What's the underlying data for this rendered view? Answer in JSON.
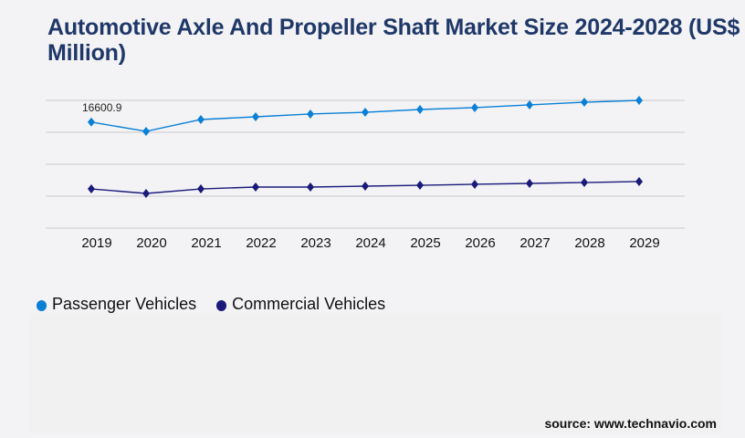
{
  "chart_data": {
    "type": "line",
    "title": "Automotive Axle And Propeller Shaft Market Size 2024-2028 (US$ Million)",
    "xlabel": "",
    "ylabel": "",
    "categories": [
      "2019",
      "2020",
      "2021",
      "2022",
      "2023",
      "2024",
      "2025",
      "2026",
      "2027",
      "2028",
      "2029"
    ],
    "ylim": [
      0,
      20000
    ],
    "grid": true,
    "legend_position": "bottom-left",
    "series": [
      {
        "name": "Passenger Vehicles",
        "color": "#0a7fd6",
        "values": [
          16600.9,
          15150,
          17000,
          17430,
          17860,
          18140,
          18570,
          18860,
          19290,
          19710,
          20000
        ]
      },
      {
        "name": "Commercial Vehicles",
        "color": "#1a1a7a",
        "values": [
          6140,
          5430,
          6140,
          6430,
          6430,
          6570,
          6710,
          6860,
          7000,
          7140,
          7290
        ]
      }
    ],
    "data_labels": [
      {
        "series": 0,
        "index": 0,
        "text": "16600.9"
      }
    ]
  },
  "source": "source: www.technavio.com"
}
